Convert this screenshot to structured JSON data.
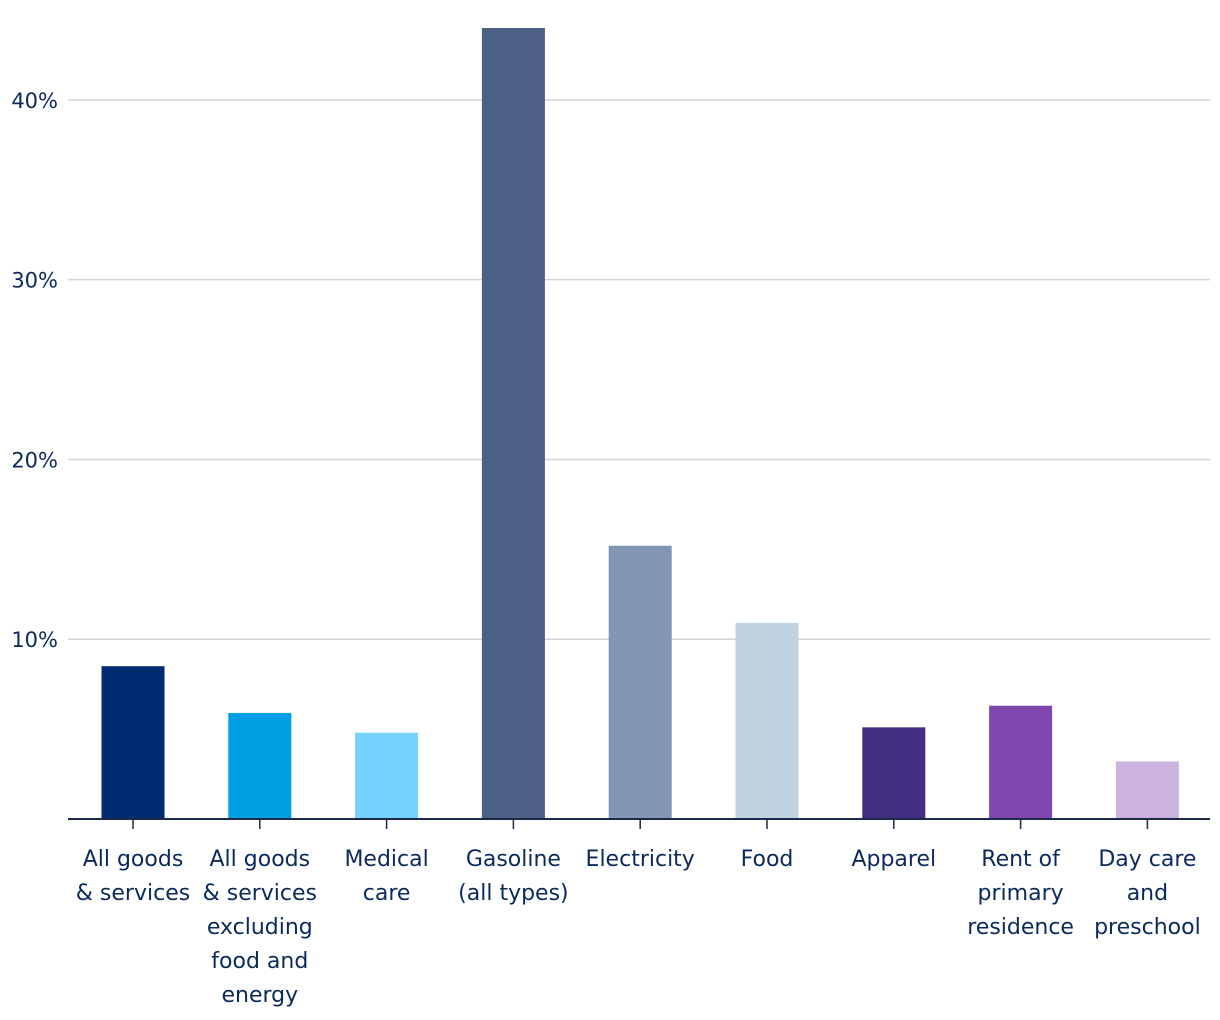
{
  "chart_data": {
    "type": "bar",
    "title": "",
    "xlabel": "",
    "ylabel": "",
    "ylim": [
      0,
      44
    ],
    "yticks": [
      10,
      20,
      30,
      40
    ],
    "ytick_labels": [
      "10%",
      "20%",
      "30%",
      "40%"
    ],
    "grid": true,
    "categories": [
      [
        "All goods",
        "& services"
      ],
      [
        "All goods",
        "& services",
        "excluding",
        "food and",
        "energy"
      ],
      [
        "Medical",
        "care"
      ],
      [
        "Gasoline",
        "(all types)"
      ],
      [
        "Electricity"
      ],
      [
        "Food"
      ],
      [
        "Apparel"
      ],
      [
        "Rent of",
        "primary",
        "residence"
      ],
      [
        "Day care",
        "and",
        "preschool"
      ]
    ],
    "values": [
      8.5,
      5.9,
      4.8,
      44.0,
      15.2,
      10.9,
      5.1,
      6.3,
      3.2
    ],
    "colors": [
      "#002d72",
      "#009fe3",
      "#76d3ff",
      "#4c5f85",
      "#8196b2",
      "#bfd3e3",
      "#432f82",
      "#7f47ae",
      "#ccb3de"
    ]
  }
}
